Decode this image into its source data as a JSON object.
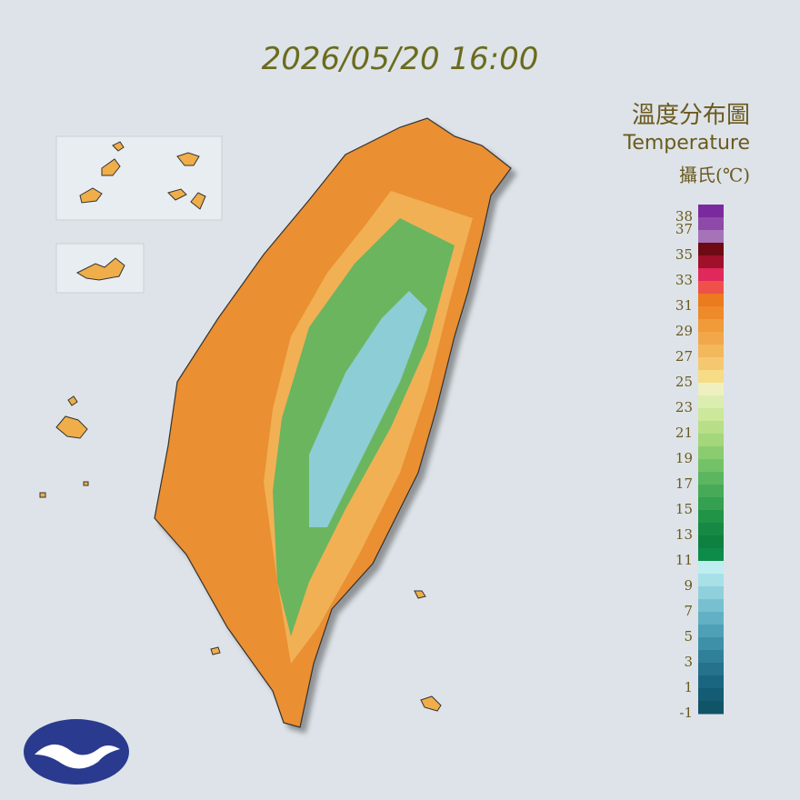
{
  "header": {
    "timestamp": "2026/05/20 16:00"
  },
  "legend": {
    "title": "溫度分布圖",
    "subtitle": "Temperature",
    "unit": "攝氏(℃)",
    "labels": [
      38,
      37,
      35,
      33,
      31,
      29,
      27,
      25,
      23,
      21,
      19,
      17,
      15,
      13,
      11,
      9,
      7,
      5,
      3,
      1,
      -1
    ],
    "colors": [
      "#7a2a9c",
      "#8e4aa8",
      "#a673b8",
      "#6e0a14",
      "#a0102a",
      "#e0285a",
      "#f0504a",
      "#ec7a1e",
      "#ee8a2a",
      "#f09a3a",
      "#f2a84a",
      "#f3b85c",
      "#f5c870",
      "#f7dc88",
      "#eef0c0",
      "#dcedb0",
      "#cce89a",
      "#b8df88",
      "#a4d67a",
      "#8ccc70",
      "#74c268",
      "#5cb660",
      "#46aa58",
      "#34a050",
      "#229448",
      "#168a44",
      "#0e8040",
      "#0c8c48",
      "#bfeef0",
      "#a8e0e8",
      "#90d0dc",
      "#78c0d0",
      "#62b0c4",
      "#4ea0b6",
      "#3e90a8",
      "#30809a",
      "#24728c",
      "#1a6680",
      "#145c74",
      "#105468"
    ]
  }
}
